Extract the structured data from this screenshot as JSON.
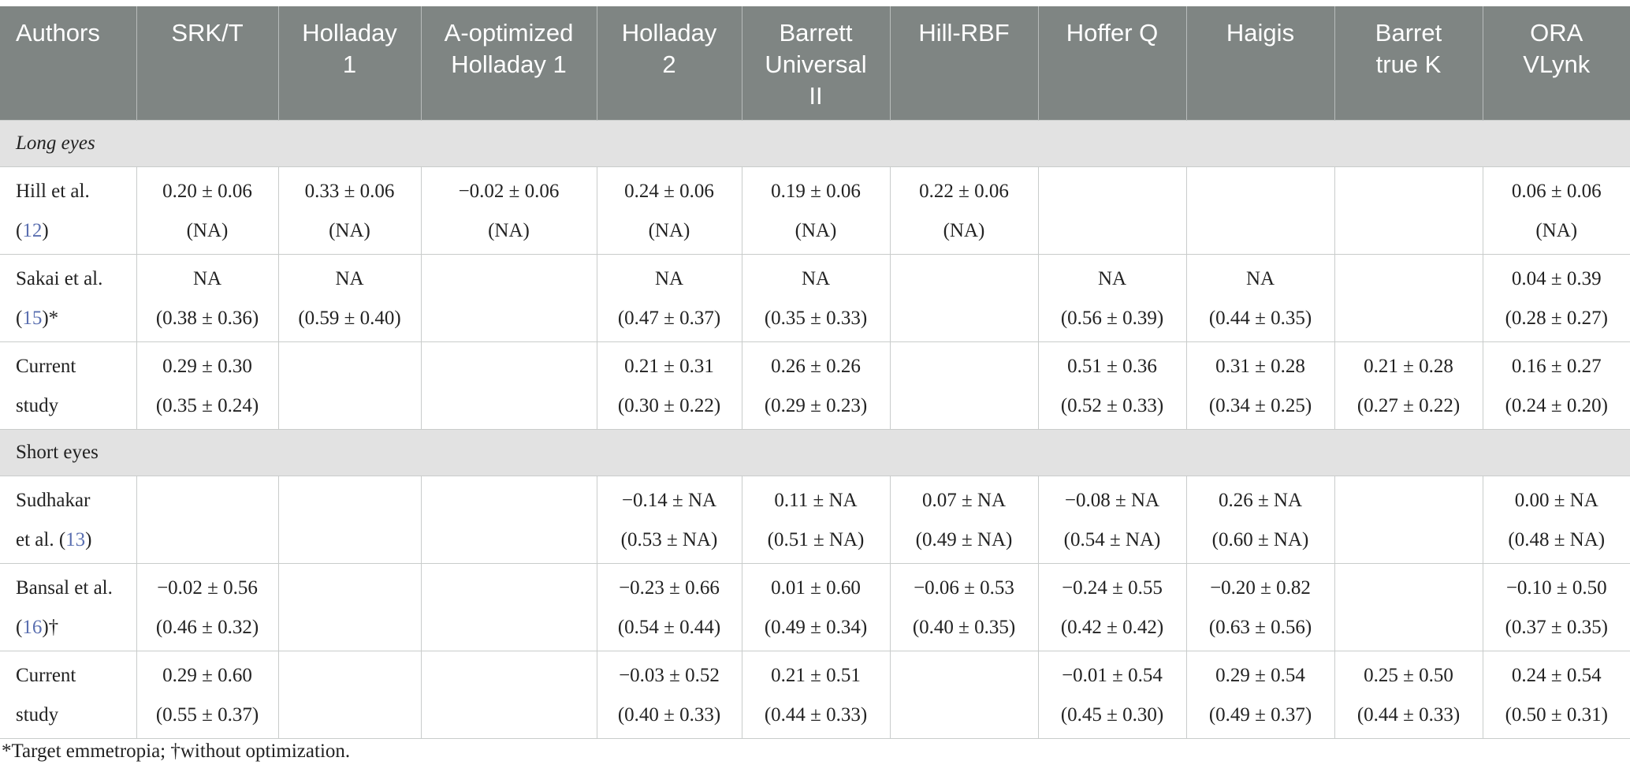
{
  "headers": [
    [
      "Authors"
    ],
    [
      "SRK/T"
    ],
    [
      "Holladay",
      "1"
    ],
    [
      "A-optimized",
      "Holladay 1"
    ],
    [
      "Holladay",
      "2"
    ],
    [
      "Barrett",
      "Universal",
      "II"
    ],
    [
      "Hill-RBF"
    ],
    [
      "Hoffer Q"
    ],
    [
      "Haigis"
    ],
    [
      "Barret",
      "true K"
    ],
    [
      "ORA",
      "VLynk"
    ]
  ],
  "sections": {
    "long": "Long eyes",
    "short": "Short eyes"
  },
  "rows": {
    "hill": {
      "author": [
        "Hill et al.",
        "(",
        "12",
        ")"
      ],
      "cells": [
        [
          "0.20 ± 0.06",
          "(NA)"
        ],
        [
          "0.33 ± 0.06",
          "(NA)"
        ],
        [
          "−0.02 ± 0.06",
          "(NA)"
        ],
        [
          "0.24 ± 0.06",
          "(NA)"
        ],
        [
          "0.19 ± 0.06",
          "(NA)"
        ],
        [
          "0.22 ± 0.06",
          "(NA)"
        ],
        [
          "",
          ""
        ],
        [
          "",
          ""
        ],
        [
          "",
          ""
        ],
        [
          "0.06 ± 0.06",
          "(NA)"
        ]
      ]
    },
    "sakai": {
      "author": [
        "Sakai et al.",
        "(",
        "15",
        ")*"
      ],
      "cells": [
        [
          "NA",
          "(0.38 ± 0.36)"
        ],
        [
          "NA",
          "(0.59 ± 0.40)"
        ],
        [
          "",
          ""
        ],
        [
          "NA",
          "(0.47 ± 0.37)"
        ],
        [
          "NA",
          "(0.35 ± 0.33)"
        ],
        [
          "",
          ""
        ],
        [
          "NA",
          "(0.56 ± 0.39)"
        ],
        [
          "NA",
          "(0.44 ± 0.35)"
        ],
        [
          "",
          ""
        ],
        [
          "0.04 ± 0.39",
          "(0.28 ± 0.27)"
        ]
      ]
    },
    "current_long": {
      "author": [
        "Current",
        "study"
      ],
      "cells": [
        [
          "0.29 ± 0.30",
          "(0.35 ± 0.24)"
        ],
        [
          "",
          ""
        ],
        [
          "",
          ""
        ],
        [
          "0.21 ± 0.31",
          "(0.30 ± 0.22)"
        ],
        [
          "0.26 ± 0.26",
          "(0.29 ± 0.23)"
        ],
        [
          "",
          ""
        ],
        [
          "0.51 ± 0.36",
          "(0.52 ± 0.33)"
        ],
        [
          "0.31 ± 0.28",
          "(0.34 ± 0.25)"
        ],
        [
          "0.21 ± 0.28",
          "(0.27 ± 0.22)"
        ],
        [
          "0.16 ± 0.27",
          "(0.24 ± 0.20)"
        ]
      ]
    },
    "sudhakar": {
      "author": [
        "Sudhakar",
        "et al. (",
        "13",
        ")"
      ],
      "cells": [
        [
          "",
          ""
        ],
        [
          "",
          ""
        ],
        [
          "",
          ""
        ],
        [
          "−0.14 ± NA",
          "(0.53 ± NA)"
        ],
        [
          "0.11 ± NA",
          "(0.51 ± NA)"
        ],
        [
          "0.07 ± NA",
          "(0.49 ± NA)"
        ],
        [
          "−0.08 ± NA",
          "(0.54 ± NA)"
        ],
        [
          "0.26 ± NA",
          "(0.60 ± NA)"
        ],
        [
          "",
          ""
        ],
        [
          "0.00 ± NA",
          "(0.48 ± NA)"
        ]
      ]
    },
    "bansal": {
      "author": [
        "Bansal et al.",
        "(",
        "16",
        ")†"
      ],
      "cells": [
        [
          "−0.02 ± 0.56",
          "(0.46 ± 0.32)"
        ],
        [
          "",
          ""
        ],
        [
          "",
          ""
        ],
        [
          "−0.23 ± 0.66",
          "(0.54 ± 0.44)"
        ],
        [
          "0.01 ± 0.60",
          "(0.49 ± 0.34)"
        ],
        [
          "−0.06 ± 0.53",
          "(0.40 ± 0.35)"
        ],
        [
          "−0.24 ± 0.55",
          "(0.42 ± 0.42)"
        ],
        [
          "−0.20 ± 0.82",
          "(0.63 ± 0.56)"
        ],
        [
          "",
          ""
        ],
        [
          "−0.10 ± 0.50",
          "(0.37 ± 0.35)"
        ]
      ]
    },
    "current_short": {
      "author": [
        "Current",
        "study"
      ],
      "cells": [
        [
          "0.29 ± 0.60",
          "(0.55 ± 0.37)"
        ],
        [
          "",
          ""
        ],
        [
          "",
          ""
        ],
        [
          "−0.03 ± 0.52",
          "(0.40 ± 0.33)"
        ],
        [
          "0.21 ± 0.51",
          "(0.44 ± 0.33)"
        ],
        [
          "",
          ""
        ],
        [
          "−0.01 ± 0.54",
          "(0.45 ± 0.30)"
        ],
        [
          "0.29 ± 0.54",
          "(0.49 ± 0.37)"
        ],
        [
          "0.25 ± 0.50",
          "(0.44 ± 0.33)"
        ],
        [
          "0.24 ± 0.54",
          "(0.50 ± 0.31)"
        ]
      ]
    }
  },
  "footnote": "*Target emmetropia; †without optimization.",
  "colors": {
    "header_bg": "#7f8583",
    "section_bg": "#e2e2e2",
    "reference_link": "#5a6fb0"
  }
}
